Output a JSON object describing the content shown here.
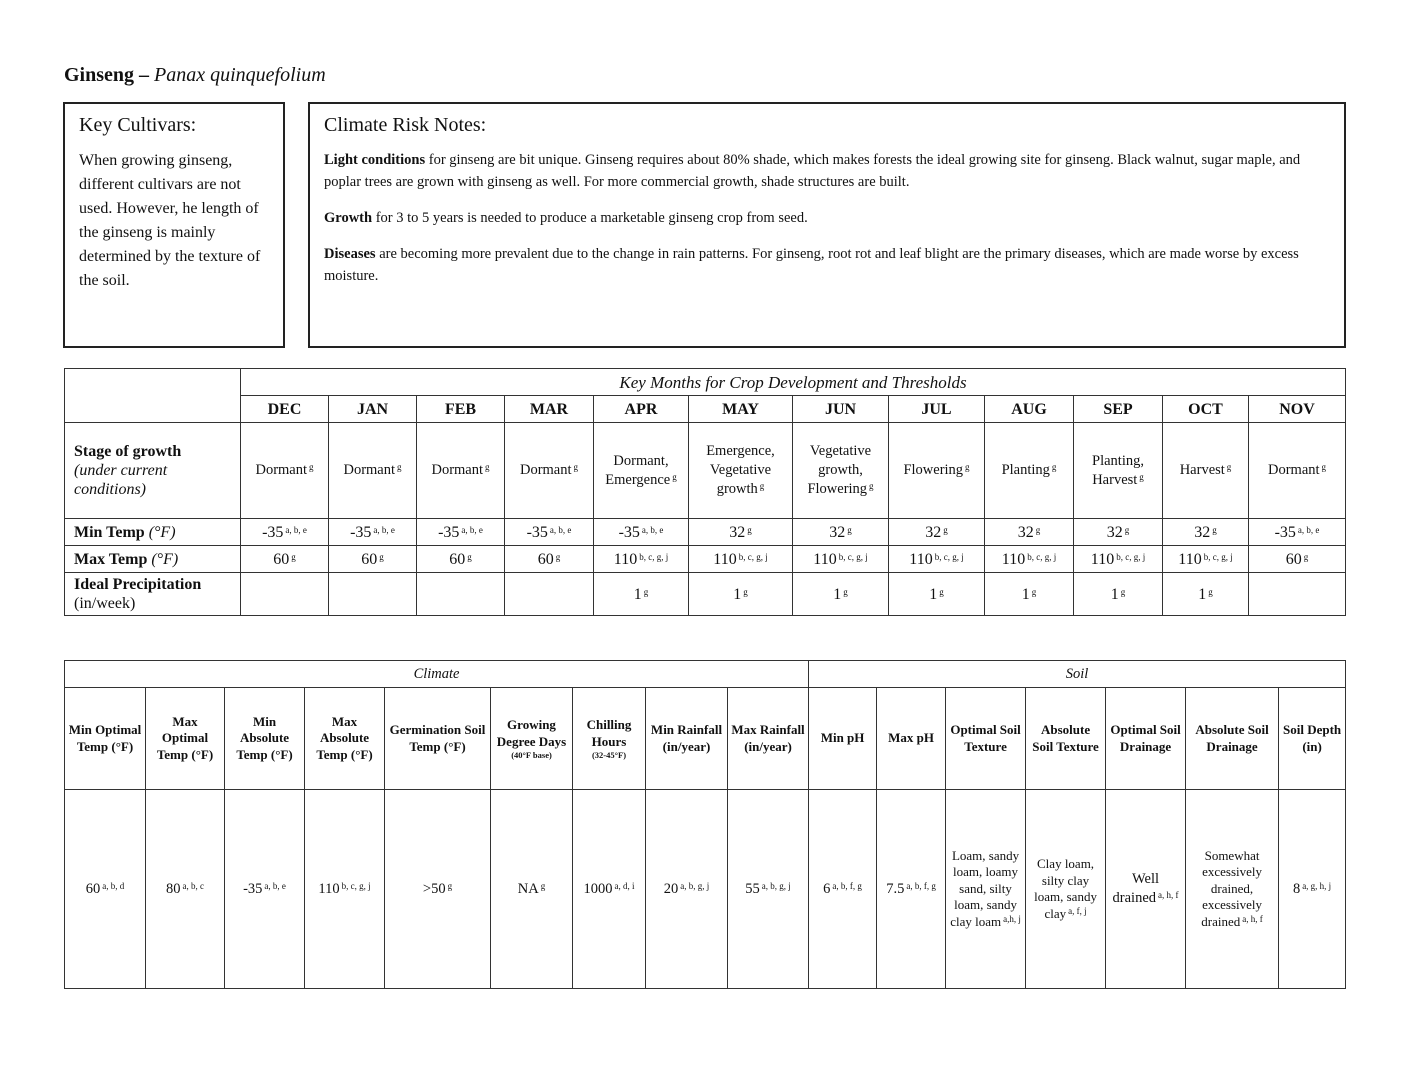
{
  "title": {
    "common": "Ginseng –",
    "scientific": "Panax quinquefolium"
  },
  "cultivars": {
    "heading": "Key Cultivars:",
    "text": "When growing ginseng, different cultivars are not used. However, he length of the ginseng is mainly determined by the texture of the soil."
  },
  "risk": {
    "heading": "Climate Risk Notes:",
    "notes": [
      {
        "term": "Light conditions",
        "text": " for ginseng are bit unique. Ginseng requires about 80% shade, which makes forests the ideal growing site for ginseng. Black walnut, sugar maple, and poplar trees are grown with ginseng as well. For more commercial growth, shade structures are built."
      },
      {
        "term": "Growth",
        "text": " for 3 to 5 years is needed to produce a marketable ginseng crop from seed."
      },
      {
        "term": "Diseases",
        "text": " are becoming more prevalent due to the change in rain patterns. For ginseng, root rot and leaf blight are the primary diseases, which are made worse by excess moisture."
      }
    ]
  },
  "months_table": {
    "heading": "Key Months for Crop Development and Thresholds",
    "months": [
      "DEC",
      "JAN",
      "FEB",
      "MAR",
      "APR",
      "MAY",
      "JUN",
      "JUL",
      "AUG",
      "SEP",
      "OCT",
      "NOV"
    ],
    "rows": [
      {
        "label": "Stage of growth",
        "sublabel": "(under current conditions)",
        "cells": [
          {
            "v": "Dormant",
            "s": "g"
          },
          {
            "v": "Dormant",
            "s": "g"
          },
          {
            "v": "Dormant",
            "s": "g"
          },
          {
            "v": "Dormant",
            "s": "g"
          },
          {
            "v": "Dormant, Emergence",
            "s": "g"
          },
          {
            "v": "Emergence, Vegetative growth",
            "s": "g"
          },
          {
            "v": "Vegetative growth, Flowering",
            "s": "g"
          },
          {
            "v": "Flowering",
            "s": "g"
          },
          {
            "v": "Planting",
            "s": "g"
          },
          {
            "v": "Planting, Harvest",
            "s": "g"
          },
          {
            "v": "Harvest",
            "s": "g"
          },
          {
            "v": "Dormant",
            "s": "g"
          }
        ]
      },
      {
        "label": "Min Temp",
        "sublabel": "(°F)",
        "cells": [
          {
            "v": "-35",
            "s": "a, b, e"
          },
          {
            "v": "-35",
            "s": "a, b, e"
          },
          {
            "v": "-35",
            "s": "a, b, e"
          },
          {
            "v": "-35",
            "s": "a, b, e"
          },
          {
            "v": "-35",
            "s": "a, b, e"
          },
          {
            "v": "32",
            "s": "g"
          },
          {
            "v": "32",
            "s": "g"
          },
          {
            "v": "32",
            "s": "g"
          },
          {
            "v": "32",
            "s": "g"
          },
          {
            "v": "32",
            "s": "g"
          },
          {
            "v": "32",
            "s": "g"
          },
          {
            "v": "-35",
            "s": "a, b, e"
          }
        ]
      },
      {
        "label": "Max Temp",
        "sublabel": "(°F)",
        "cells": [
          {
            "v": "60",
            "s": "g"
          },
          {
            "v": "60",
            "s": "g"
          },
          {
            "v": "60",
            "s": "g"
          },
          {
            "v": "60",
            "s": "g"
          },
          {
            "v": "110",
            "s": "b, c, g, j"
          },
          {
            "v": "110",
            "s": "b, c, g, j"
          },
          {
            "v": "110",
            "s": "b, c, g, j"
          },
          {
            "v": "110",
            "s": "b, c, g, j"
          },
          {
            "v": "110",
            "s": "b, c, g, j"
          },
          {
            "v": "110",
            "s": "b, c, g, j"
          },
          {
            "v": "110",
            "s": "b, c, g, j"
          },
          {
            "v": "60",
            "s": "g"
          }
        ]
      },
      {
        "label": "Ideal Precipitation",
        "sublabel": "(in/week)",
        "cells": [
          {
            "v": "",
            "s": ""
          },
          {
            "v": "",
            "s": ""
          },
          {
            "v": "",
            "s": ""
          },
          {
            "v": "",
            "s": ""
          },
          {
            "v": "1",
            "s": "g"
          },
          {
            "v": "1",
            "s": "g"
          },
          {
            "v": "1",
            "s": "g"
          },
          {
            "v": "1",
            "s": "g"
          },
          {
            "v": "1",
            "s": "g"
          },
          {
            "v": "1",
            "s": "g"
          },
          {
            "v": "1",
            "s": "g"
          },
          {
            "v": "",
            "s": ""
          }
        ]
      }
    ]
  },
  "thresholds_table": {
    "climate_heading": "Climate",
    "soil_heading": "Soil",
    "columns": [
      {
        "h": "Min Optimal Temp (°F)",
        "note": "",
        "v": "60",
        "s": "a, b, d"
      },
      {
        "h": "Max Optimal Temp (°F)",
        "note": "",
        "v": "80",
        "s": "a, b, c"
      },
      {
        "h": "Min Absolute Temp (°F)",
        "note": "",
        "v": "-35",
        "s": "a, b, e"
      },
      {
        "h": "Max Absolute Temp (°F)",
        "note": "",
        "v": "110",
        "s": "b, c, g, j"
      },
      {
        "h": "Germination Soil Temp (°F)",
        "note": "",
        "v": ">50",
        "s": "g"
      },
      {
        "h": "Growing Degree Days",
        "note": "(40°F base)",
        "v": "NA",
        "s": "g"
      },
      {
        "h": "Chilling Hours",
        "note": "(32-45°F)",
        "v": "1000",
        "s": "a, d, i"
      },
      {
        "h": "Min Rainfall (in/year)",
        "note": "",
        "v": "20",
        "s": "a, b, g, j"
      },
      {
        "h": "Max Rainfall (in/year)",
        "note": "",
        "v": "55",
        "s": "a, b, g, j"
      },
      {
        "h": "Min pH",
        "note": "",
        "v": "6",
        "s": "a, b, f, g"
      },
      {
        "h": "Max pH",
        "note": "",
        "v": "7.5",
        "s": "a, b, f, g"
      },
      {
        "h": "Optimal Soil Texture",
        "note": "",
        "v": "Loam, sandy loam, loamy sand, silty loam, sandy clay loam",
        "s": "a,h, j"
      },
      {
        "h": "Absolute Soil Texture",
        "note": "",
        "v": "Clay loam, silty clay loam, sandy clay",
        "s": "a, f, j"
      },
      {
        "h": "Optimal Soil Drainage",
        "note": "",
        "v": "Well drained",
        "s": "a, h, f"
      },
      {
        "h": "Absolute Soil Drainage",
        "note": "",
        "v": "Somewhat excessively drained, excessively drained",
        "s": "a, h, f"
      },
      {
        "h": "Soil Depth (in)",
        "note": "",
        "v": "8",
        "s": "a, g, h, j"
      }
    ]
  }
}
